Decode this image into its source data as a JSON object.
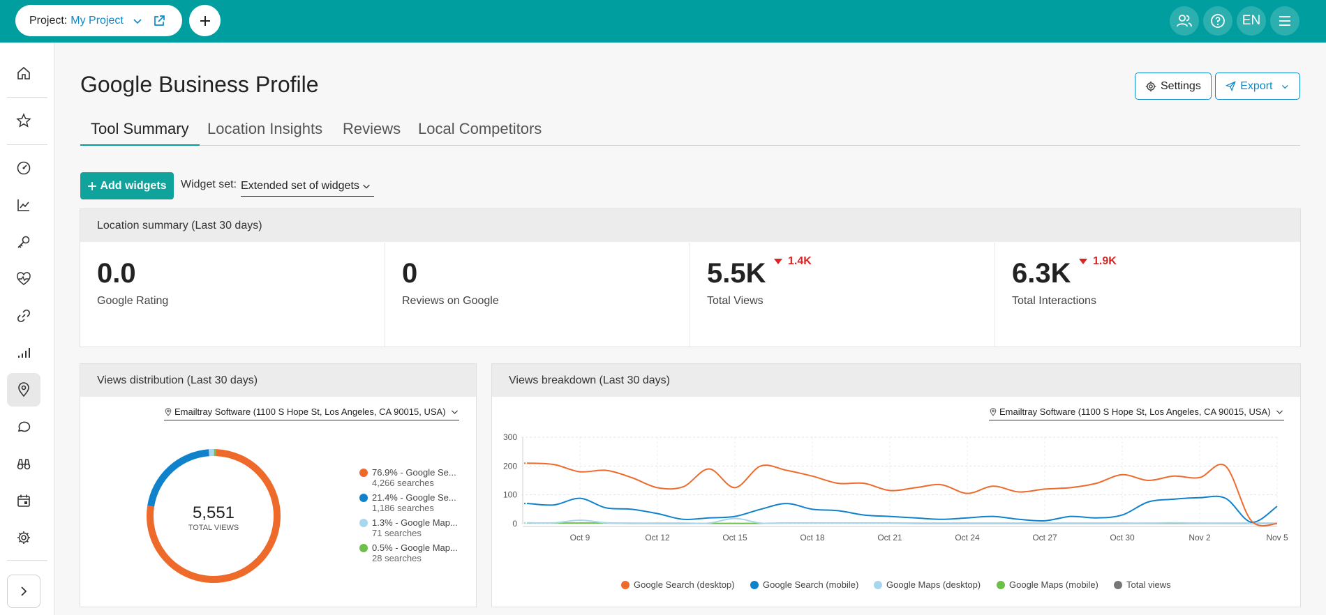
{
  "topbar": {
    "project_label": "Project:",
    "project_value": "My Project",
    "lang": "EN"
  },
  "page": {
    "title": "Google Business Profile"
  },
  "header_buttons": {
    "settings": "Settings",
    "export": "Export"
  },
  "tabs": [
    {
      "label": "Tool Summary",
      "active": true
    },
    {
      "label": "Location Insights",
      "active": false
    },
    {
      "label": "Reviews",
      "active": false
    },
    {
      "label": "Local Competitors",
      "active": false
    }
  ],
  "toolbar": {
    "add_widgets": "Add widgets",
    "widget_set_label": "Widget set:",
    "widget_set_value": "Extended set of widgets"
  },
  "location_summary": {
    "title": "Location summary (Last 30 days)",
    "kpis": [
      {
        "value": "0.0",
        "label": "Google Rating",
        "delta": ""
      },
      {
        "value": "0",
        "label": "Reviews on Google",
        "delta": ""
      },
      {
        "value": "5.5K",
        "label": "Total Views",
        "delta": "1.4K"
      },
      {
        "value": "6.3K",
        "label": "Total Interactions",
        "delta": "1.9K"
      }
    ]
  },
  "views_distribution": {
    "title": "Views distribution (Last 30 days)",
    "location": "Emailtray Software (1100 S Hope St, Los Angeles, CA 90015, USA)",
    "total": "5,551",
    "total_label": "TOTAL VIEWS",
    "legend": [
      {
        "label": "76.9% - Google Se...",
        "sub": "4,266 searches",
        "color": "#ee6a2b"
      },
      {
        "label": "21.4% - Google Se...",
        "sub": "1,186 searches",
        "color": "#1082cc"
      },
      {
        "label": "1.3% - Google Map...",
        "sub": "71 searches",
        "color": "#a9d6ef"
      },
      {
        "label": "0.5% - Google Map...",
        "sub": "28 searches",
        "color": "#6cc04a"
      }
    ]
  },
  "views_breakdown": {
    "title": "Views breakdown (Last 30 days)",
    "location": "Emailtray Software (1100 S Hope St, Los Angeles, CA 90015, USA)",
    "legend": [
      {
        "label": "Google Search (desktop)",
        "color": "#ee6a2b"
      },
      {
        "label": "Google Search (mobile)",
        "color": "#1082cc"
      },
      {
        "label": "Google Maps (desktop)",
        "color": "#a9d6ef"
      },
      {
        "label": "Google Maps (mobile)",
        "color": "#6cc04a"
      },
      {
        "label": "Total views",
        "color": "#777777"
      }
    ]
  },
  "chart_data": [
    {
      "type": "pie",
      "categories": [
        "Google Search (desktop)",
        "Google Search (mobile)",
        "Google Maps (desktop)",
        "Google Maps (mobile)"
      ],
      "values": [
        4266,
        1186,
        71,
        28
      ],
      "colors": [
        "#ee6a2b",
        "#1082cc",
        "#a9d6ef",
        "#6cc04a"
      ]
    },
    {
      "type": "line",
      "x_ticks": [
        "Oct 9",
        "Oct 12",
        "Oct 15",
        "Oct 18",
        "Oct 21",
        "Oct 24",
        "Oct 27",
        "Oct 30",
        "Nov 2",
        "Nov 5"
      ],
      "ylim": [
        0,
        300
      ],
      "y_ticks": [
        0,
        100,
        200,
        300
      ],
      "x": [
        "Oct 7",
        "Oct 8",
        "Oct 9",
        "Oct 10",
        "Oct 11",
        "Oct 12",
        "Oct 13",
        "Oct 14",
        "Oct 15",
        "Oct 16",
        "Oct 17",
        "Oct 18",
        "Oct 19",
        "Oct 20",
        "Oct 21",
        "Oct 22",
        "Oct 23",
        "Oct 24",
        "Oct 25",
        "Oct 26",
        "Oct 27",
        "Oct 28",
        "Oct 29",
        "Oct 30",
        "Oct 31",
        "Nov 1",
        "Nov 2",
        "Nov 3",
        "Nov 4",
        "Nov 5"
      ],
      "series": [
        {
          "name": "Google Search (desktop)",
          "color": "#ee6a2b",
          "values": [
            210,
            205,
            180,
            185,
            160,
            125,
            128,
            190,
            125,
            200,
            185,
            165,
            140,
            140,
            115,
            125,
            135,
            105,
            130,
            110,
            120,
            125,
            140,
            170,
            150,
            165,
            160,
            200,
            10,
            0
          ]
        },
        {
          "name": "Google Search (mobile)",
          "color": "#1082cc",
          "values": [
            70,
            65,
            88,
            55,
            50,
            35,
            15,
            20,
            25,
            50,
            70,
            50,
            45,
            30,
            25,
            20,
            15,
            20,
            25,
            15,
            10,
            25,
            20,
            30,
            75,
            85,
            90,
            88,
            5,
            60
          ]
        },
        {
          "name": "Google Maps (desktop)",
          "color": "#a9d6ef",
          "values": [
            3,
            3,
            12,
            3,
            2,
            2,
            2,
            2,
            18,
            2,
            2,
            2,
            2,
            2,
            2,
            2,
            2,
            2,
            2,
            2,
            2,
            2,
            2,
            2,
            2,
            3,
            2,
            2,
            2,
            2
          ]
        },
        {
          "name": "Google Maps (mobile)",
          "color": "#6cc04a",
          "values": [
            2,
            2,
            2,
            2,
            1,
            1,
            1,
            1,
            1,
            1,
            2,
            2,
            2,
            2,
            2,
            1,
            1,
            1,
            1,
            1,
            1,
            1,
            1,
            1,
            1,
            1,
            1,
            1,
            1,
            1
          ]
        }
      ]
    }
  ]
}
